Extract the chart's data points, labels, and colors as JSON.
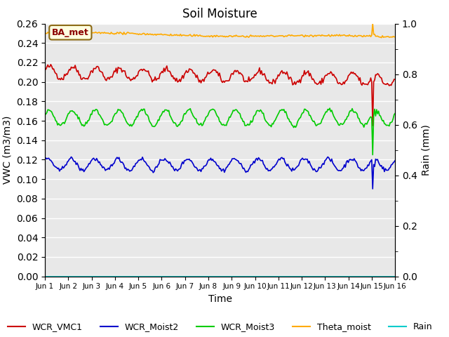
{
  "title": "Soil Moisture",
  "ylabel_left": "VWC (m3/m3)",
  "ylabel_right": "Rain (mm)",
  "xlabel": "Time",
  "annotation": "BA_met",
  "ylim_left": [
    0.0,
    0.26
  ],
  "ylim_right": [
    0.0,
    1.0
  ],
  "yticks_left": [
    0.0,
    0.02,
    0.04,
    0.06,
    0.08,
    0.1,
    0.12,
    0.14,
    0.16,
    0.18,
    0.2,
    0.22,
    0.24,
    0.26
  ],
  "yticks_right": [
    0.0,
    0.2,
    0.4,
    0.6,
    0.8,
    1.0
  ],
  "n_days": 15,
  "colors": {
    "WCR_VMC1": "#cc0000",
    "WCR_Moist2": "#0000cc",
    "WCR_Moist3": "#00cc00",
    "Theta_moist": "#ffaa00",
    "Rain": "#00cccc"
  },
  "bg_color": "#e8e8e8",
  "grid_color": "#ffffff",
  "linewidth": 1.2
}
